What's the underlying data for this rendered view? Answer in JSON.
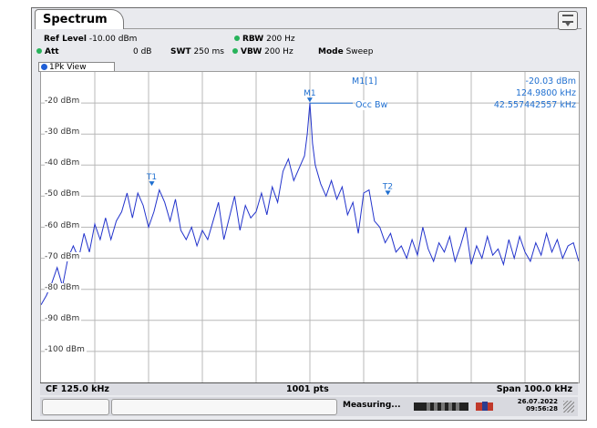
{
  "tab": {
    "title": "Spectrum"
  },
  "settings": {
    "ref_level_label": "Ref Level",
    "ref_level_value": "-10.00 dBm",
    "att_label": "Att",
    "att_value": "0 dB",
    "swt_label": "SWT",
    "swt_value": "250 ms",
    "rbw_label": "RBW",
    "rbw_value": "200 Hz",
    "vbw_label": "VBW",
    "vbw_value": "200 Hz",
    "mode_label": "Mode",
    "mode_value": "Sweep"
  },
  "view": {
    "label": "1Pk View"
  },
  "marker_info": {
    "name": "M1[1]",
    "level": "-20.03 dBm",
    "freq": "124.9800 kHz",
    "occ_label": "Occ Bw",
    "occ_value": "42.557442557 kHz"
  },
  "markers": {
    "m1": "M1",
    "t1": "T1",
    "t2": "T2"
  },
  "bottom": {
    "cf": "CF 125.0 kHz",
    "pts": "1001 pts",
    "span": "Span 100.0 kHz"
  },
  "status": {
    "text": "Measuring...",
    "date": "26.07.2022",
    "time": "09:56:28"
  },
  "colors": {
    "trace": "#2233cc",
    "marker": "#1f6fd0",
    "grid": "#b8b8b8"
  },
  "chart_data": {
    "type": "line",
    "title": "",
    "xlabel": "",
    "ylabel": "",
    "ylim": [
      -110,
      -10
    ],
    "xlim": [
      75.0,
      175.0
    ],
    "y_ticks": [
      "-20 dBm",
      "-30 dBm",
      "-40 dBm",
      "-50 dBm",
      "-60 dBm",
      "-70 dBm",
      "-80 dBm",
      "-90 dBm",
      "-100 dBm"
    ],
    "grid": true,
    "series": [
      {
        "x": [
          75,
          76,
          77,
          78,
          79,
          80,
          81,
          82,
          83,
          84,
          85,
          86,
          87,
          88,
          89,
          90,
          91,
          92,
          93,
          94,
          95,
          96,
          97,
          98,
          99,
          100,
          101,
          102,
          103,
          104,
          105,
          106,
          107,
          108,
          109,
          110,
          111,
          112,
          113,
          114,
          115,
          116,
          117,
          118,
          119,
          120,
          121,
          122,
          123,
          124,
          124.5,
          125,
          125.5,
          126,
          127,
          128,
          129,
          130,
          131,
          132,
          133,
          134,
          135,
          136,
          137,
          138,
          139,
          140,
          141,
          142,
          143,
          144,
          145,
          146,
          147,
          148,
          149,
          150,
          151,
          152,
          153,
          154,
          155,
          156,
          157,
          158,
          159,
          160,
          161,
          162,
          163,
          164,
          165,
          166,
          167,
          168,
          169,
          170,
          171,
          172,
          173,
          174,
          175
        ],
        "y": [
          -85,
          -82,
          -78,
          -73,
          -79,
          -70,
          -66,
          -70,
          -62,
          -68,
          -59,
          -64,
          -57,
          -64,
          -58,
          -55,
          -49,
          -57,
          -49,
          -53,
          -60,
          -55,
          -48,
          -52,
          -58,
          -51,
          -61,
          -64,
          -60,
          -66,
          -61,
          -64,
          -58,
          -52,
          -64,
          -57,
          -50,
          -61,
          -53,
          -57,
          -55,
          -49,
          -56,
          -47,
          -52,
          -42,
          -38,
          -45,
          -41,
          -37,
          -30,
          -20,
          -33,
          -40,
          -46,
          -50,
          -45,
          -51,
          -47,
          -56,
          -52,
          -62,
          -49,
          -48,
          -58,
          -60,
          -65,
          -62,
          -68,
          -66,
          -70,
          -64,
          -69,
          -60,
          -67,
          -71,
          -65,
          -68,
          -63,
          -71,
          -66,
          -60,
          -72,
          -66,
          -70,
          -63,
          -69,
          -67,
          -72,
          -64,
          -70,
          -63,
          -68,
          -71,
          -65,
          -69,
          -62,
          -68,
          -64,
          -70,
          -66,
          -65,
          -71
        ]
      }
    ],
    "markers": [
      {
        "name": "M1",
        "x": 124.98,
        "y": -20.03
      },
      {
        "name": "T1",
        "x": 95.6,
        "y": -47
      },
      {
        "name": "T2",
        "x": 139.5,
        "y": -50
      }
    ],
    "annotations": [
      "Occ Bw"
    ]
  }
}
